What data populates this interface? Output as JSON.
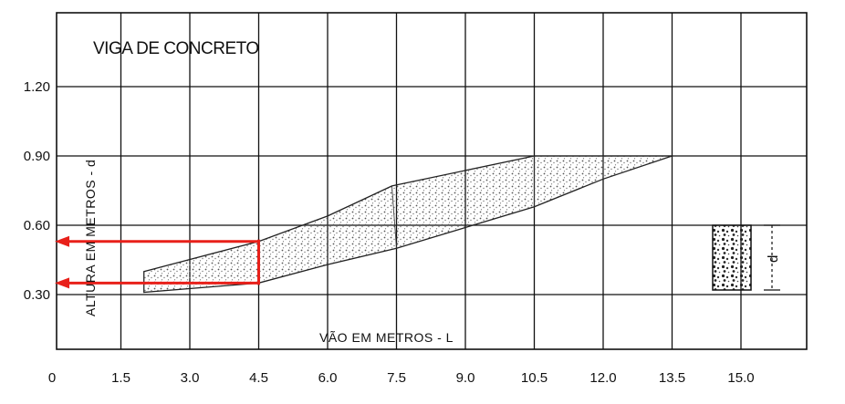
{
  "chart_data": {
    "type": "area",
    "title": "VIGA DE CONCRETO",
    "xlabel": "VÃO  EM  METROS - L",
    "ylabel": "ALTURA EM METROS - d",
    "xlim": [
      0,
      16.5
    ],
    "ylim": [
      0,
      1.47
    ],
    "x_ticks": [
      "0",
      "1.5",
      "3.0",
      "4.5",
      "6.0",
      "7.5",
      "9.0",
      "10.5",
      "12.0",
      "13.5",
      "15.0"
    ],
    "x_tick_values": [
      0,
      1.5,
      3.0,
      4.5,
      6.0,
      7.5,
      9.0,
      10.5,
      12.0,
      13.5,
      15.0
    ],
    "y_ticks": [
      "0.30",
      "0.60",
      "0.90",
      "1.20"
    ],
    "y_tick_values": [
      0.3,
      0.6,
      0.9,
      1.2
    ],
    "grid": true,
    "series": [
      {
        "values_upper": [
          [
            2.0,
            0.4
          ],
          [
            4.5,
            0.53
          ],
          [
            6.0,
            0.64
          ],
          [
            7.4,
            0.77
          ],
          [
            10.5,
            0.9
          ],
          [
            12.0,
            0.9
          ],
          [
            13.5,
            0.9
          ]
        ],
        "values_lower": [
          [
            2.0,
            0.31
          ],
          [
            4.5,
            0.35
          ],
          [
            6.0,
            0.43
          ],
          [
            7.5,
            0.5
          ],
          [
            10.5,
            0.68
          ],
          [
            12.0,
            0.8
          ],
          [
            13.5,
            0.9
          ]
        ]
      }
    ],
    "section_label": "d",
    "annotations": {
      "marker_x": 4.5,
      "marker_y_low": 0.35,
      "marker_y_high": 0.53,
      "color": "#e8201a"
    }
  }
}
